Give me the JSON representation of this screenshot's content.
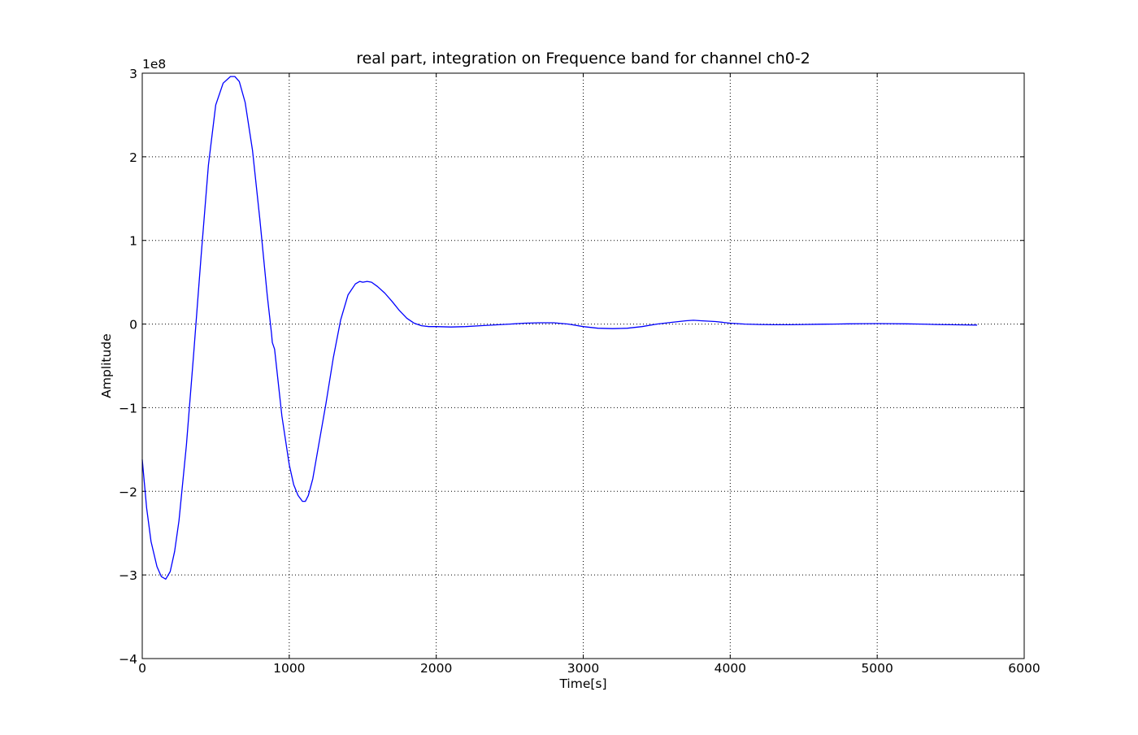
{
  "chart_data": {
    "type": "line",
    "title": "real part, integration on Frequence band for channel ch0-2",
    "xlabel": "Time[s]",
    "ylabel": "Amplitude",
    "y_offset_label": "1e8",
    "xlim": [
      0,
      6000
    ],
    "ylim": [
      -4,
      3
    ],
    "y_scale_factor": 100000000,
    "x_ticks": [
      0,
      1000,
      2000,
      3000,
      4000,
      5000,
      6000
    ],
    "x_tick_labels": [
      "0",
      "1000",
      "2000",
      "3000",
      "4000",
      "5000",
      "6000"
    ],
    "y_ticks": [
      -4,
      -3,
      -2,
      -1,
      0,
      1,
      2,
      3
    ],
    "y_tick_labels": [
      "−4",
      "−3",
      "−2",
      "−1",
      "0",
      "1",
      "2",
      "3"
    ],
    "grid": true,
    "series": [
      {
        "color": "#0000ff",
        "x": [
          0,
          30,
          60,
          100,
          130,
          160,
          190,
          220,
          250,
          300,
          350,
          400,
          450,
          500,
          550,
          600,
          630,
          660,
          700,
          750,
          800,
          850,
          880,
          885,
          900,
          950,
          1000,
          1030,
          1060,
          1090,
          1110,
          1130,
          1160,
          1200,
          1250,
          1300,
          1350,
          1400,
          1450,
          1480,
          1500,
          1530,
          1560,
          1600,
          1650,
          1700,
          1750,
          1800,
          1850,
          1900,
          1950,
          2000,
          2100,
          2200,
          2300,
          2400,
          2500,
          2600,
          2700,
          2800,
          2900,
          3000,
          3100,
          3200,
          3300,
          3400,
          3500,
          3600,
          3700,
          3750,
          3800,
          3900,
          4000,
          4100,
          4200,
          4300,
          4400,
          4500,
          4600,
          4700,
          4800,
          4900,
          5000,
          5100,
          5200,
          5300,
          5400,
          5500,
          5600,
          5680
        ],
        "y": [
          -1.62,
          -2.2,
          -2.6,
          -2.9,
          -3.02,
          -3.05,
          -2.96,
          -2.72,
          -2.35,
          -1.45,
          -0.35,
          0.8,
          1.9,
          2.62,
          2.88,
          2.96,
          2.96,
          2.9,
          2.65,
          2.08,
          1.25,
          0.35,
          -0.12,
          -0.22,
          -0.3,
          -1.1,
          -1.68,
          -1.92,
          -2.05,
          -2.12,
          -2.12,
          -2.05,
          -1.85,
          -1.45,
          -0.95,
          -0.4,
          0.05,
          0.35,
          0.48,
          0.51,
          0.5,
          0.51,
          0.5,
          0.45,
          0.37,
          0.27,
          0.16,
          0.07,
          0.01,
          -0.02,
          -0.03,
          -0.03,
          -0.035,
          -0.03,
          -0.02,
          -0.01,
          0.0,
          0.01,
          0.015,
          0.015,
          0.0,
          -0.03,
          -0.05,
          -0.055,
          -0.05,
          -0.03,
          0.0,
          0.02,
          0.04,
          0.045,
          0.04,
          0.03,
          0.01,
          0.0,
          -0.005,
          -0.008,
          -0.008,
          -0.005,
          -0.002,
          0.0,
          0.003,
          0.005,
          0.006,
          0.005,
          0.003,
          0.0,
          -0.005,
          -0.008,
          -0.01,
          -0.012
        ]
      }
    ]
  }
}
